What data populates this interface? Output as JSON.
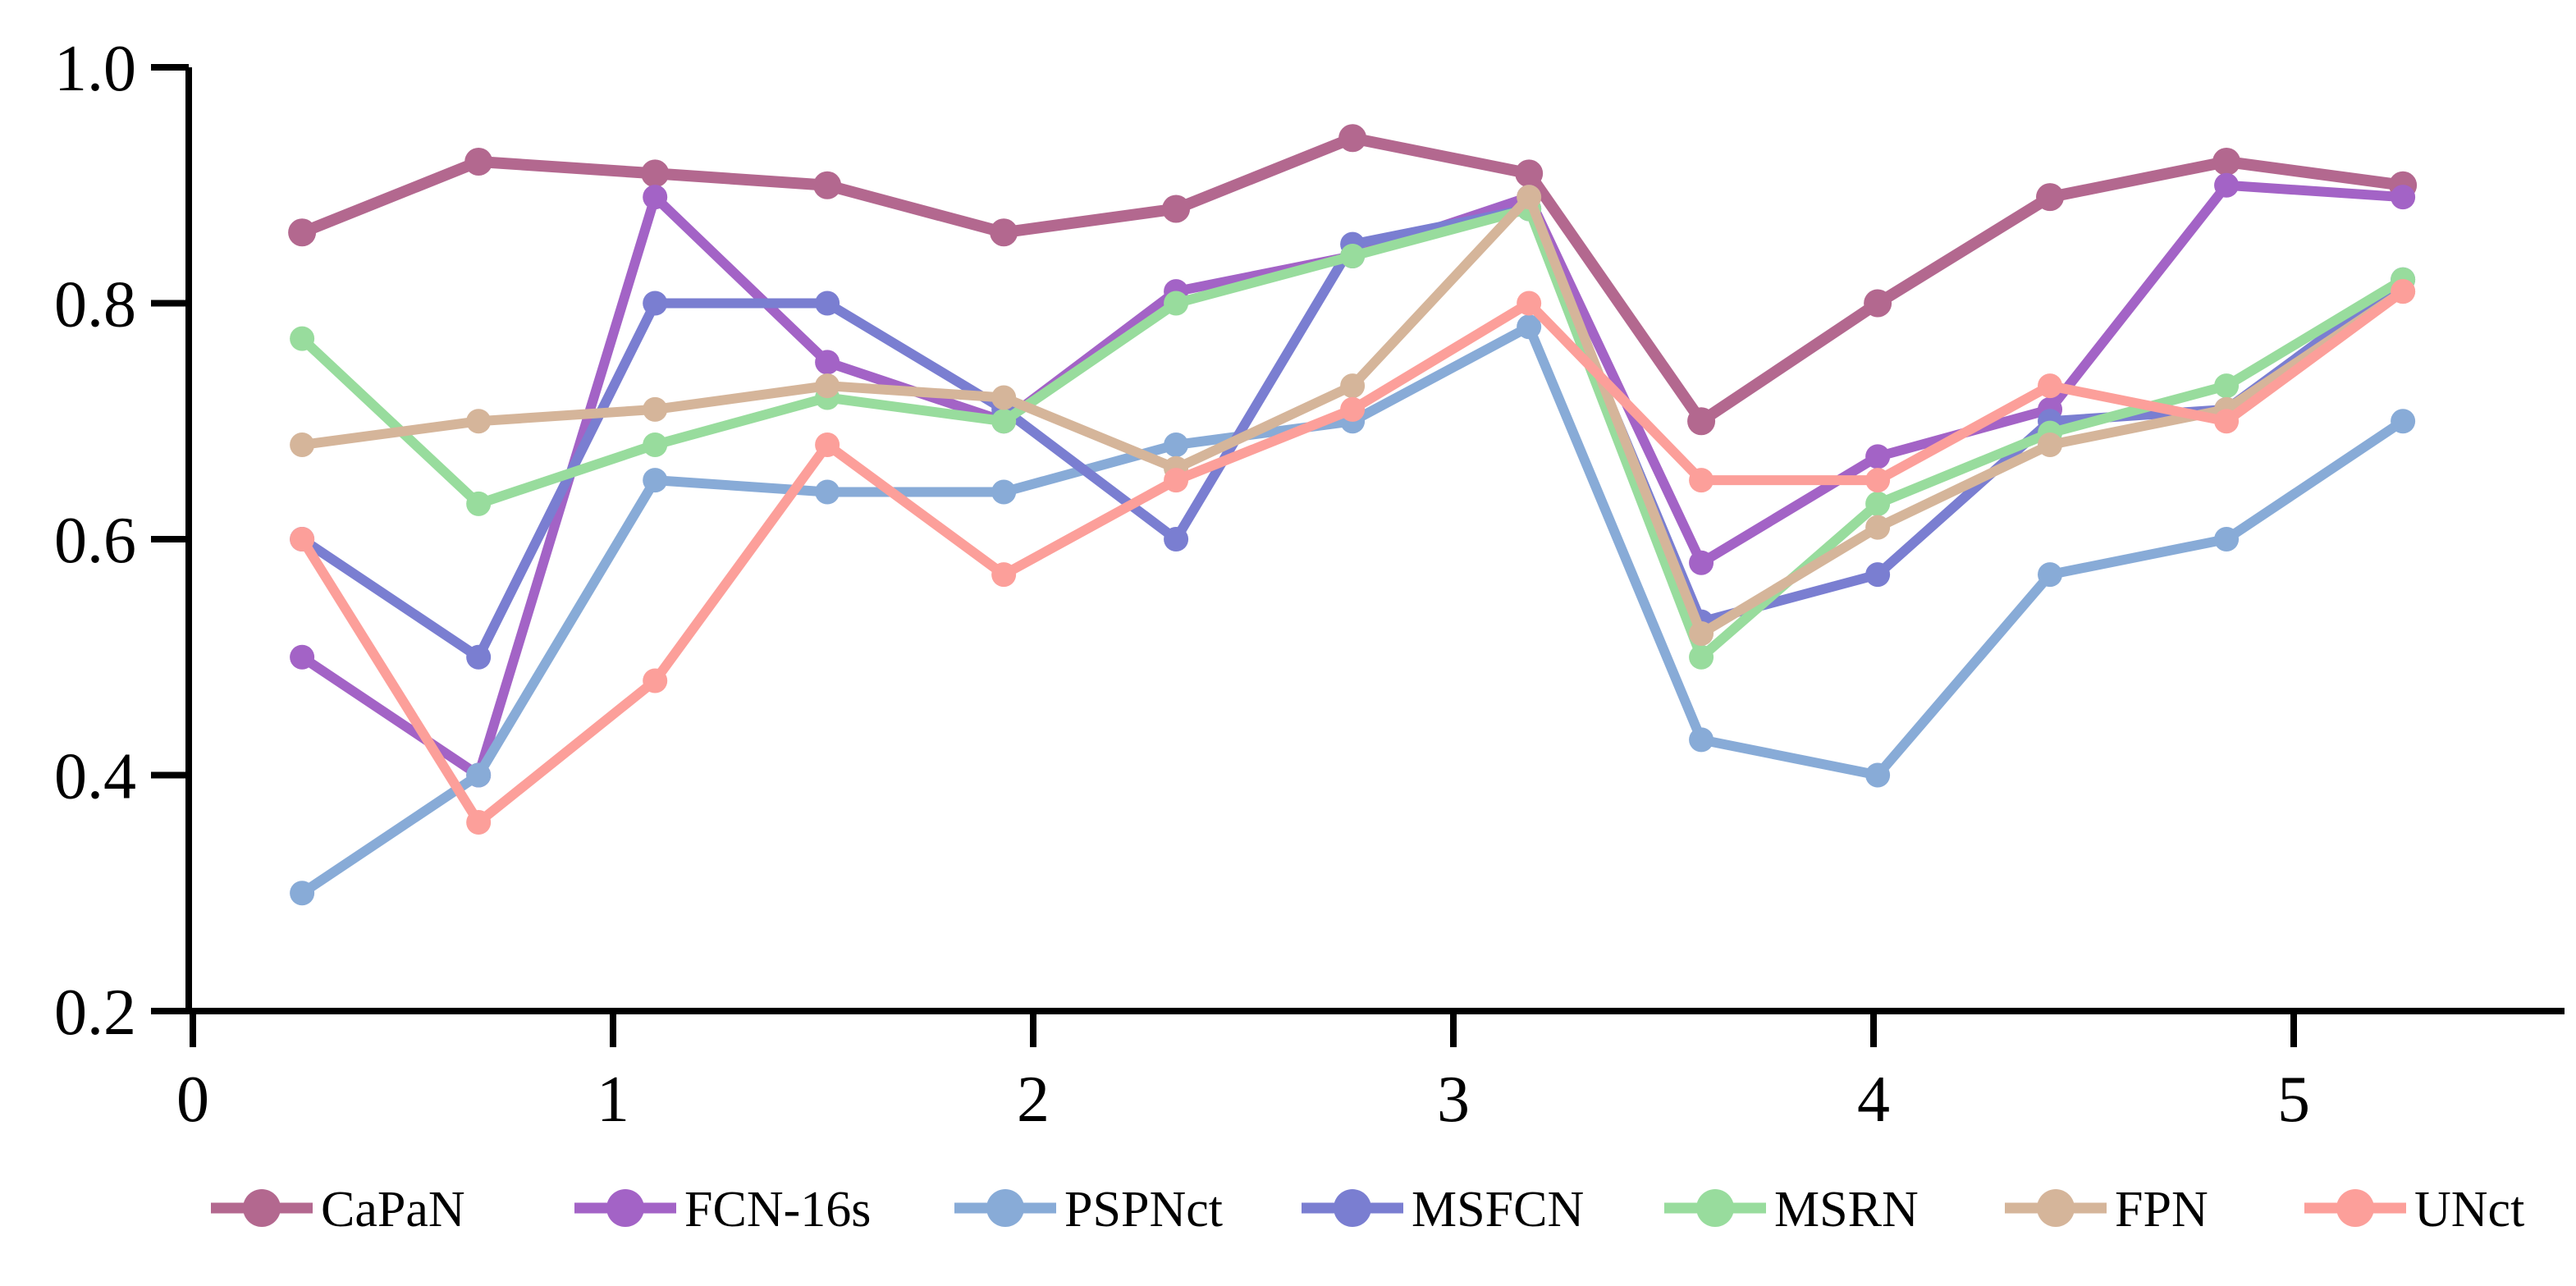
{
  "chart_data": {
    "type": "line",
    "title": "",
    "xlabel": "",
    "ylabel": "",
    "grid": false,
    "legend_position": "bottom",
    "xlim": [
      0,
      5.65
    ],
    "ylim": [
      0.2,
      1.0
    ],
    "x_ticks": [
      "0",
      "1",
      "2",
      "3",
      "4",
      "5"
    ],
    "y_ticks": [
      "0.2",
      "0.4",
      "0.6",
      "0.8",
      "1.0"
    ],
    "x": [
      0.26,
      0.68,
      1.1,
      1.51,
      1.93,
      2.34,
      2.76,
      3.18,
      3.59,
      4.01,
      4.42,
      4.84,
      5.26
    ],
    "series": [
      {
        "name": "CaPaN",
        "color": "#b3688f",
        "values": [
          0.86,
          0.92,
          0.91,
          0.9,
          0.86,
          0.88,
          0.94,
          0.91,
          0.7,
          0.8,
          0.89,
          0.92,
          0.9
        ]
      },
      {
        "name": "FCN-16s",
        "color": "#a363c6",
        "values": [
          0.5,
          0.4,
          0.89,
          0.75,
          0.7,
          0.81,
          0.84,
          0.89,
          0.58,
          0.67,
          0.71,
          0.9,
          0.89
        ]
      },
      {
        "name": "PSPNct",
        "color": "#88abd7",
        "values": [
          0.3,
          0.4,
          0.65,
          0.64,
          0.64,
          0.68,
          0.7,
          0.78,
          0.43,
          0.4,
          0.57,
          0.6,
          0.7
        ]
      },
      {
        "name": "MSFCN",
        "color": "#7a7ed1",
        "values": [
          0.6,
          0.5,
          0.8,
          0.8,
          0.71,
          0.6,
          0.85,
          0.88,
          0.53,
          0.57,
          0.7,
          0.71,
          0.82
        ]
      },
      {
        "name": "MSRN",
        "color": "#98dc9d",
        "values": [
          0.77,
          0.63,
          0.68,
          0.72,
          0.7,
          0.8,
          0.84,
          0.88,
          0.5,
          0.63,
          0.69,
          0.73,
          0.82
        ]
      },
      {
        "name": "FPN",
        "color": "#d5b59a",
        "values": [
          0.68,
          0.7,
          0.71,
          0.73,
          0.72,
          0.66,
          0.73,
          0.89,
          0.52,
          0.61,
          0.68,
          0.71,
          0.81
        ]
      },
      {
        "name": "UNct",
        "color": "#fc9f9a",
        "values": [
          0.6,
          0.36,
          0.48,
          0.68,
          0.57,
          0.65,
          0.71,
          0.8,
          0.65,
          0.65,
          0.73,
          0.7,
          0.81
        ]
      }
    ]
  }
}
